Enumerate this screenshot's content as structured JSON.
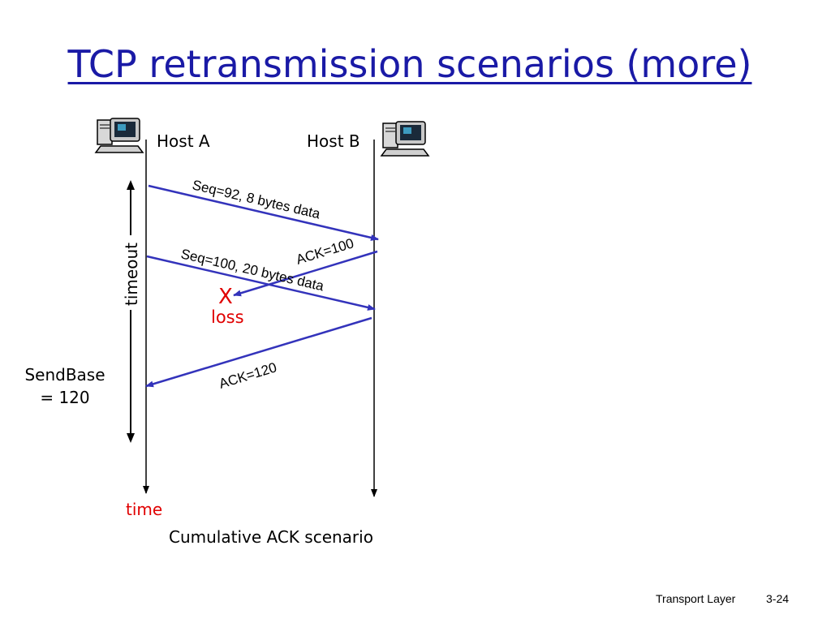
{
  "slide": {
    "title": "TCP retransmission scenarios (more)",
    "caption": "Cumulative ACK scenario",
    "footer_left": "Transport Layer",
    "footer_right": "3-24"
  },
  "hosts": {
    "a": {
      "label": "Host A",
      "icon": "computer-icon"
    },
    "b": {
      "label": "Host B",
      "icon": "computer-icon"
    }
  },
  "messages": [
    {
      "label": "Seq=92, 8 bytes data",
      "direction": "A-to-B"
    },
    {
      "label": "ACK=100",
      "direction": "B-to-A",
      "lost": true
    },
    {
      "label": "Seq=100, 20 bytes data",
      "direction": "A-to-B"
    },
    {
      "label": "ACK=120",
      "direction": "B-to-A"
    }
  ],
  "loss": {
    "mark": "X",
    "label": "loss"
  },
  "timeout": {
    "label": "timeout"
  },
  "sendbase": {
    "line1": "SendBase",
    "line2": "= 120"
  },
  "time_label": "time",
  "colors": {
    "title": "#1a1aa6",
    "arrow": "#3333bb",
    "loss": "#e00000",
    "timeline": "#000000"
  }
}
